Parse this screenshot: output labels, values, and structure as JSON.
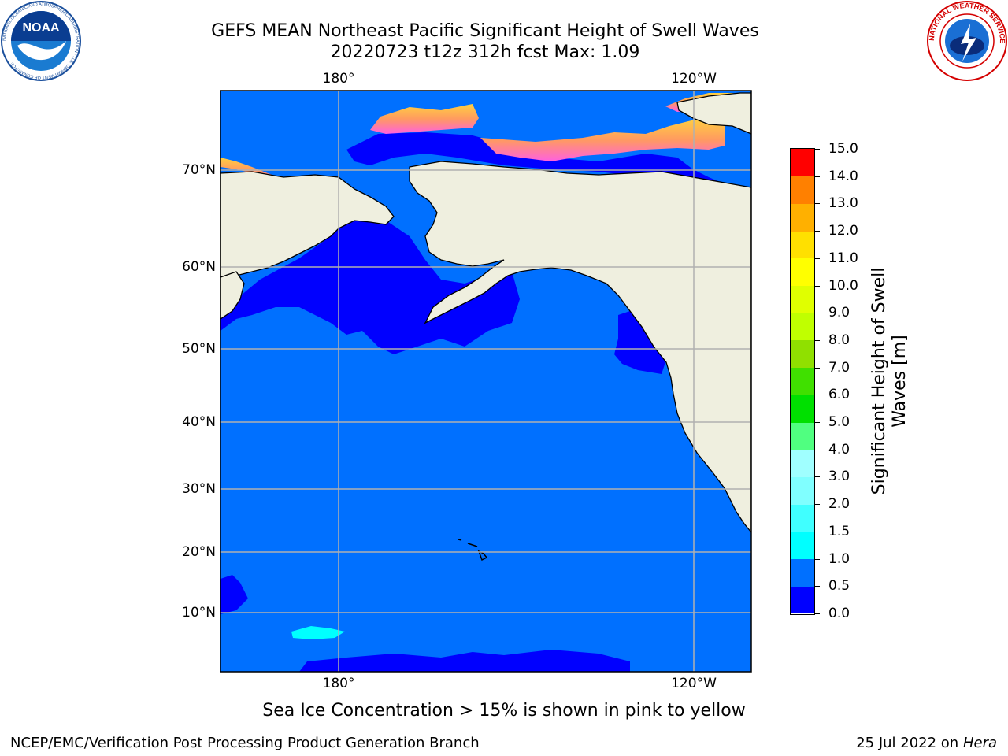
{
  "title_line1": "GEFS MEAN Northeast Pacific Significant Height of Swell Waves",
  "title_line2": "20220723 t12z 312h fcst   Max: 1.09",
  "x_tick_labels": [
    "180°",
    "120°W"
  ],
  "y_tick_labels": [
    "70°N",
    "60°N",
    "50°N",
    "40°N",
    "30°N",
    "20°N",
    "10°N"
  ],
  "colorbar": {
    "label_line1": "Significant Height of Swell",
    "label_line2": "Waves [m]",
    "ticks": [
      "15.0",
      "14.0",
      "13.0",
      "12.0",
      "11.0",
      "10.0",
      "9.0",
      "8.0",
      "7.0",
      "6.0",
      "5.0",
      "4.0",
      "3.0",
      "2.0",
      "1.5",
      "1.0",
      "0.5",
      "0.0"
    ],
    "colors_bottom_to_top": [
      "#0000ff",
      "#0070ff",
      "#00ffff",
      "#40ffff",
      "#80ffff",
      "#a0ffff",
      "#50ff80",
      "#00e000",
      "#40e000",
      "#90e000",
      "#c0ff00",
      "#e0ff00",
      "#ffff00",
      "#ffe000",
      "#ffb000",
      "#ff8000",
      "#ff5000",
      "#ff2000",
      "#ff0000"
    ]
  },
  "caption": "Sea Ice Concentration > 15% is shown in pink to yellow",
  "footer_left": "NCEP/EMC/Verification Post Processing Product Generation Branch",
  "footer_right_text": "25 Jul 2022 on ",
  "footer_right_machine": "Hera",
  "logo_left": {
    "name": "noaa-logo",
    "text": "NOAA",
    "ring_text": "NATIONAL OCEANIC AND ATMOSPHERIC ADMINISTRATION · U.S. DEPARTMENT OF COMMERCE"
  },
  "logo_right": {
    "name": "nws-logo",
    "ring_text": "NATIONAL WEATHER SERVICE"
  },
  "colors": {
    "ocean": "#0070ff",
    "calm_sea": "#0000ff",
    "land": "#efefdf",
    "grid": "#b0b0b0",
    "ice_pink": "#ff60e0",
    "ice_yellow": "#ffd040"
  }
}
